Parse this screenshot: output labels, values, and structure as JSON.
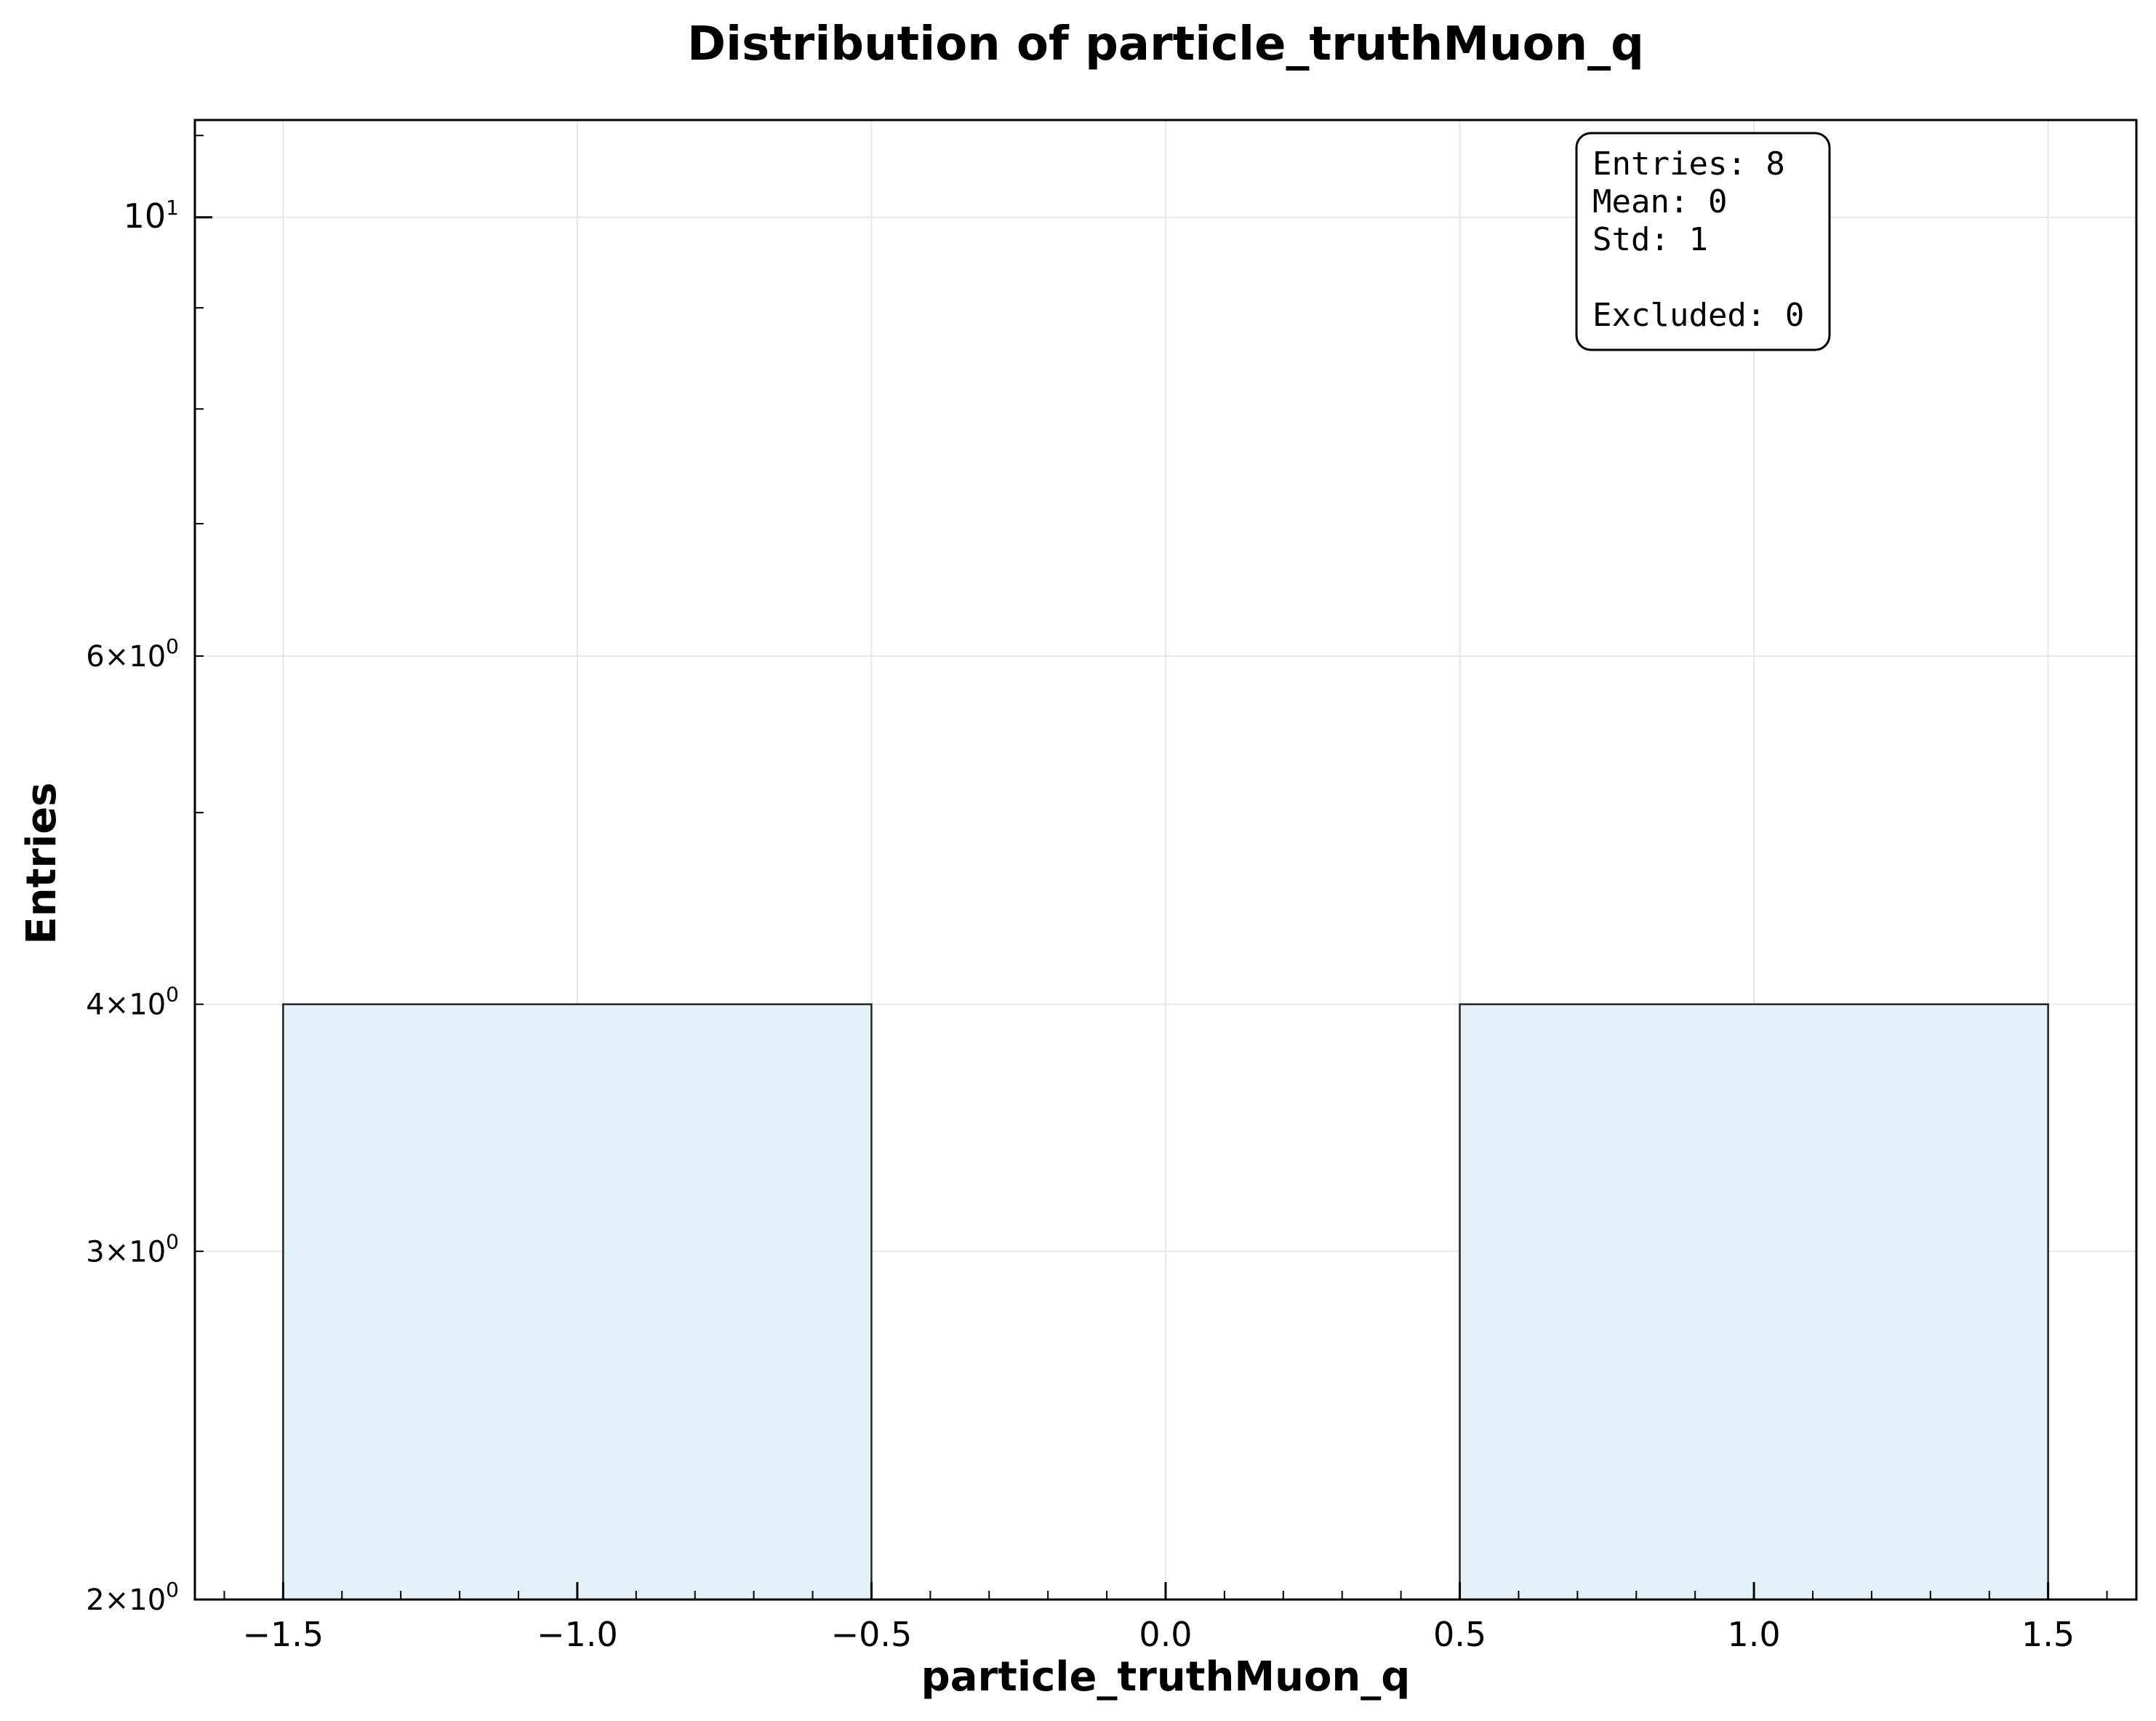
{
  "chart_data": {
    "type": "bar",
    "title": "Distribution of particle_truthMuon_q",
    "xlabel": "particle_truthMuon_q",
    "ylabel": "Entries",
    "yscale": "log",
    "xlim": [
      -1.65,
      1.65
    ],
    "ylim": [
      2,
      11.2
    ],
    "grid": true,
    "bins": [
      {
        "x0": -1.5,
        "x1": -0.5,
        "value": 4
      },
      {
        "x0": 0.5,
        "x1": 1.5,
        "value": 4
      }
    ],
    "bar_color": "#e3f2f8",
    "edge_color": "#222222",
    "x_ticks": [
      {
        "value": -1.5,
        "label": "−1.5"
      },
      {
        "value": -1.0,
        "label": "−1.0"
      },
      {
        "value": -0.5,
        "label": "−0.5"
      },
      {
        "value": 0.0,
        "label": "0.0"
      },
      {
        "value": 0.5,
        "label": "0.5"
      },
      {
        "value": 1.0,
        "label": "1.0"
      },
      {
        "value": 1.5,
        "label": "1.5"
      }
    ],
    "y_ticks": [
      {
        "value": 10,
        "mantissa": "",
        "base": "10",
        "exp": "1"
      },
      {
        "value": 6,
        "mantissa": "6",
        "base": "10",
        "exp": "0"
      },
      {
        "value": 4,
        "mantissa": "4",
        "base": "10",
        "exp": "0"
      },
      {
        "value": 3,
        "mantissa": "3",
        "base": "10",
        "exp": "0"
      },
      {
        "value": 2,
        "mantissa": "2",
        "base": "10",
        "exp": "0"
      }
    ],
    "stats_box": {
      "lines": [
        "Entries: 8",
        "Mean: 0",
        "Std: 1",
        "",
        "Excluded: 0"
      ]
    }
  }
}
